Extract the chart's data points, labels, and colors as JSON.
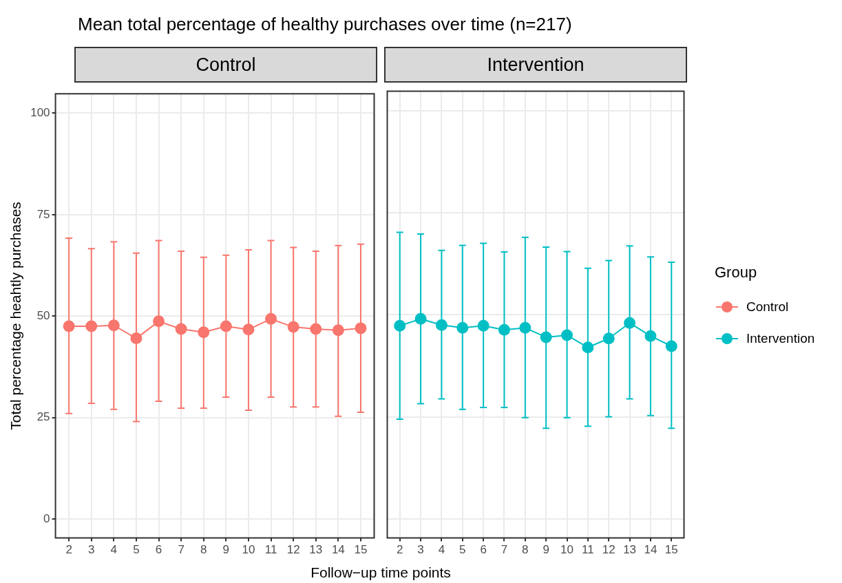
{
  "chart_data": [
    {
      "type": "line",
      "title": "Mean total percentage of healthy purchases over time (n=217)",
      "subtitle": "Control",
      "xlabel": "Follow−up time points",
      "ylabel": "Total percentage heahtly purchases",
      "x": [
        2,
        3,
        4,
        5,
        6,
        7,
        8,
        9,
        10,
        11,
        12,
        13,
        14,
        15
      ],
      "xlim": [
        1.4,
        15.6
      ],
      "xticks": [
        2,
        3,
        4,
        5,
        6,
        7,
        8,
        9,
        10,
        11,
        12,
        13,
        14,
        15
      ],
      "ylim": [
        -4.7,
        104.8
      ],
      "yticks": [
        0,
        25,
        50,
        75,
        100
      ],
      "grid": true,
      "marker": "circle",
      "series": [
        {
          "name": "Control",
          "color": "#f8766d",
          "values": [
            47.5,
            47.5,
            47.7,
            44.5,
            48.7,
            46.8,
            46,
            47.5,
            46.7,
            49.3,
            47.3,
            46.8,
            46.5,
            47
          ],
          "errors": [
            [
              26,
              69.2
            ],
            [
              28.5,
              66.6
            ],
            [
              27,
              68.3
            ],
            [
              24,
              65.5
            ],
            [
              29,
              68.6
            ],
            [
              27.3,
              66
            ],
            [
              27.3,
              64.5
            ],
            [
              30,
              65
            ],
            [
              26.8,
              66.3
            ],
            [
              30,
              68.6
            ],
            [
              27.6,
              66.9
            ],
            [
              27.6,
              66
            ],
            [
              25.3,
              67.4
            ],
            [
              26.3,
              67.7
            ]
          ]
        }
      ]
    },
    {
      "type": "line",
      "subtitle": "Intervention",
      "legend_title": "Group",
      "legend": "right",
      "x": [
        2,
        3,
        4,
        5,
        6,
        7,
        8,
        9,
        10,
        11,
        12,
        13,
        14,
        15
      ],
      "xlim": [
        1.4,
        15.6
      ],
      "xticks": [
        2,
        3,
        4,
        5,
        6,
        7,
        8,
        9,
        10,
        11,
        12,
        13,
        14,
        15
      ],
      "ylim": [
        -4.7,
        104.8
      ],
      "yticks": [
        0,
        25,
        50,
        75,
        100
      ],
      "tick_labels": "x",
      "grid": true,
      "marker": "circle",
      "series": [
        {
          "name": "Intervention",
          "color": "#00bfc4",
          "values": [
            47.3,
            49,
            47.5,
            46.8,
            47.3,
            46.3,
            46.8,
            44.5,
            45,
            42,
            44.2,
            48,
            44.8,
            42.3
          ],
          "errors": [
            [
              24.4,
              70.2
            ],
            [
              28.2,
              69.8
            ],
            [
              29.4,
              65.8
            ],
            [
              26.8,
              67
            ],
            [
              27.3,
              67.5
            ],
            [
              27.3,
              65.4
            ],
            [
              24.8,
              69
            ],
            [
              22.2,
              66.6
            ],
            [
              24.8,
              65.5
            ],
            [
              22.7,
              61.4
            ],
            [
              25,
              63.3
            ],
            [
              29.4,
              66.9
            ],
            [
              25.3,
              64.2
            ],
            [
              22.2,
              62.9
            ]
          ]
        }
      ]
    }
  ]
}
